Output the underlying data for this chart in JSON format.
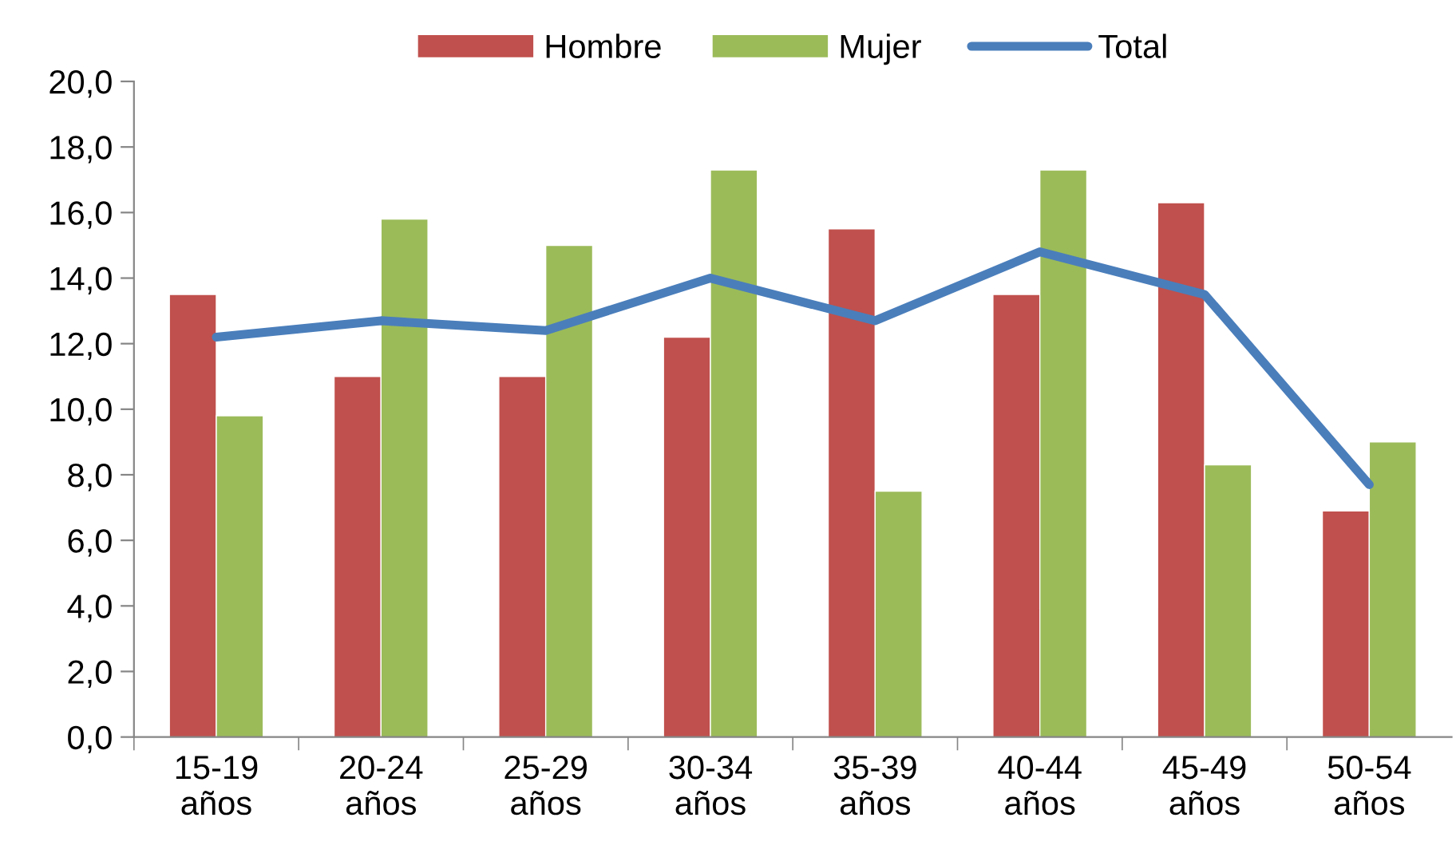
{
  "chart_data": {
    "type": "bar",
    "categories": [
      "15-19\naños",
      "20-24\naños",
      "25-29\naños",
      "30-34\naños",
      "35-39\naños",
      "40-44\naños",
      "45-49\naños",
      "50-54\naños"
    ],
    "series": [
      {
        "name": "Hombre",
        "color": "#c0504d",
        "values": [
          13.5,
          11.0,
          11.0,
          12.2,
          15.5,
          13.5,
          16.3,
          6.9
        ]
      },
      {
        "name": "Mujer",
        "color": "#9bbb59",
        "values": [
          9.8,
          15.8,
          15.0,
          17.3,
          7.5,
          17.3,
          8.3,
          9.0
        ]
      },
      {
        "name": "Total",
        "type": "line",
        "color": "#4a7ebb",
        "values": [
          12.2,
          12.7,
          12.4,
          14.0,
          12.7,
          14.8,
          13.5,
          7.7
        ]
      }
    ],
    "ylim": [
      0,
      20
    ],
    "yticks": [
      {
        "value": 0,
        "label": "0,0"
      },
      {
        "value": 2,
        "label": "2,0"
      },
      {
        "value": 4,
        "label": "4,0"
      },
      {
        "value": 6,
        "label": "6,0"
      },
      {
        "value": 8,
        "label": "8,0"
      },
      {
        "value": 10,
        "label": "10,0"
      },
      {
        "value": 12,
        "label": "12,0"
      },
      {
        "value": 14,
        "label": "14,0"
      },
      {
        "value": 16,
        "label": "16,0"
      },
      {
        "value": 18,
        "label": "18,0"
      },
      {
        "value": 20,
        "label": "20,0"
      }
    ],
    "grid": false,
    "legend": "top"
  }
}
